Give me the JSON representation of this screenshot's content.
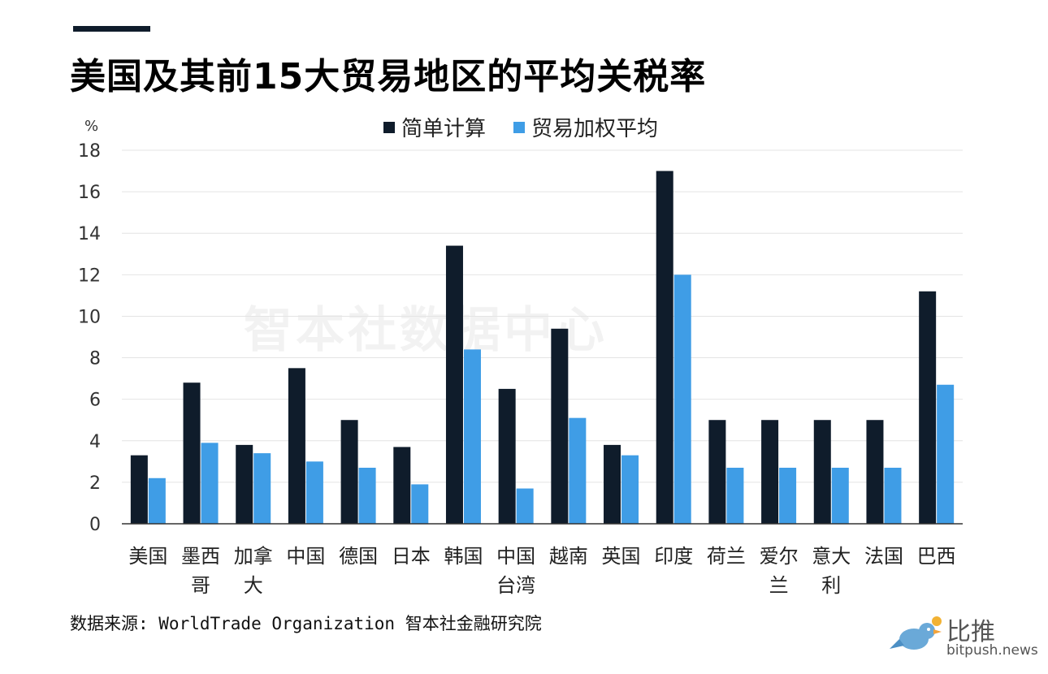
{
  "title": "美国及其前15大贸易地区的平均关税率",
  "watermark": "智本社数据中心",
  "source": "数据来源: WorldTrade Organization 智本社金融研究院",
  "logo": {
    "name": "比推",
    "url": "bitpush.news",
    "icon": "bird-icon"
  },
  "colors": {
    "series1": "#0f1c2b",
    "series2": "#3f9de6",
    "grid": "#e4e4e4",
    "axis": "#333333"
  },
  "chart_data": {
    "type": "bar",
    "ylabel": "%",
    "ylim": [
      0,
      18
    ],
    "yticks": [
      0,
      2,
      4,
      6,
      8,
      10,
      12,
      14,
      16,
      18
    ],
    "grid": true,
    "legend_position": "top",
    "categories": [
      [
        "美国"
      ],
      [
        "墨西",
        "哥"
      ],
      [
        "加拿",
        "大"
      ],
      [
        "中国"
      ],
      [
        "德国"
      ],
      [
        "日本"
      ],
      [
        "韩国"
      ],
      [
        "中国",
        "台湾"
      ],
      [
        "越南"
      ],
      [
        "英国"
      ],
      [
        "印度"
      ],
      [
        "荷兰"
      ],
      [
        "爱尔",
        "兰"
      ],
      [
        "意大",
        "利"
      ],
      [
        "法国"
      ],
      [
        "巴西"
      ]
    ],
    "series": [
      {
        "name": "简单计算",
        "values": [
          3.3,
          6.8,
          3.8,
          7.5,
          5.0,
          3.7,
          13.4,
          6.5,
          9.4,
          3.8,
          17.0,
          5.0,
          5.0,
          5.0,
          5.0,
          11.2
        ]
      },
      {
        "name": "贸易加权平均",
        "values": [
          2.2,
          3.9,
          3.4,
          3.0,
          2.7,
          1.9,
          8.4,
          1.7,
          5.1,
          3.3,
          12.0,
          2.7,
          2.7,
          2.7,
          2.7,
          6.7
        ]
      }
    ]
  }
}
